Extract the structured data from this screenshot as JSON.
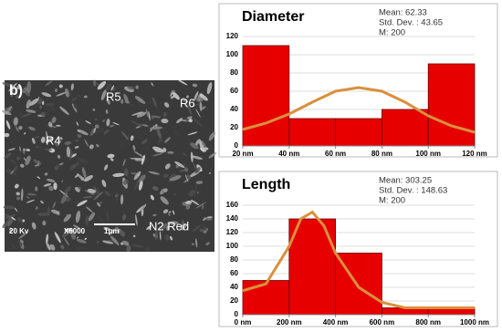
{
  "image": {
    "labels": [
      "b)",
      "R5",
      "R6",
      "R4",
      "20 Kv",
      "X5000",
      "1μm",
      "N2 Red"
    ]
  },
  "chart_data": [
    {
      "type": "histogram",
      "title": "Diameter",
      "stats": [
        "Mean: 62.33",
        "Std. Dev. : 43.65",
        "M: 200"
      ],
      "bins": [
        20,
        40,
        60,
        80,
        100,
        120
      ],
      "values": [
        110,
        30,
        30,
        40,
        90
      ],
      "color": "#e60000",
      "xlim": [
        20,
        120
      ],
      "xticks": [
        {
          "value": 20,
          "label": "20 nm"
        },
        {
          "value": 40,
          "label": "40 nm"
        },
        {
          "value": 60,
          "label": "60 nm"
        },
        {
          "value": 80,
          "label": "80 nm"
        },
        {
          "value": 100,
          "label": "100 nm"
        },
        {
          "value": 120,
          "label": "120 nm"
        }
      ],
      "ylim": [
        0,
        120
      ],
      "yticks": [
        0,
        20,
        40,
        60,
        80,
        100,
        120
      ],
      "grid": true,
      "curve": {
        "color": "#d9903d",
        "x": [
          20,
          30,
          40,
          50,
          60,
          70,
          80,
          90,
          100,
          110,
          120
        ],
        "y": [
          18,
          25,
          35,
          48,
          60,
          64,
          60,
          48,
          33,
          22,
          15
        ]
      }
    },
    {
      "type": "histogram",
      "title": "Length",
      "stats": [
        "Mean: 303.25",
        "Std. Dev. : 148.63",
        "M: 200"
      ],
      "bins": [
        0,
        200,
        400,
        600,
        800,
        1000
      ],
      "values": [
        50,
        140,
        90,
        10,
        10
      ],
      "color": "#e60000",
      "xlim": [
        0,
        1000
      ],
      "xticks": [
        {
          "value": 0,
          "label": "0 nm"
        },
        {
          "value": 200,
          "label": "200 nm"
        },
        {
          "value": 400,
          "label": "400 nm"
        },
        {
          "value": 600,
          "label": "600 nm"
        },
        {
          "value": 800,
          "label": "800 nm"
        },
        {
          "value": 1000,
          "label": "1000 nm"
        }
      ],
      "ylim": [
        0,
        160
      ],
      "yticks": [
        0,
        20,
        40,
        60,
        80,
        100,
        120,
        140,
        160
      ],
      "grid": true,
      "curve": {
        "color": "#d9903d",
        "x": [
          0,
          100,
          200,
          250,
          300,
          350,
          400,
          500,
          600,
          700,
          800,
          900,
          1000
        ],
        "y": [
          35,
          45,
          100,
          140,
          150,
          130,
          90,
          40,
          18,
          10,
          10,
          10,
          10
        ]
      }
    }
  ]
}
